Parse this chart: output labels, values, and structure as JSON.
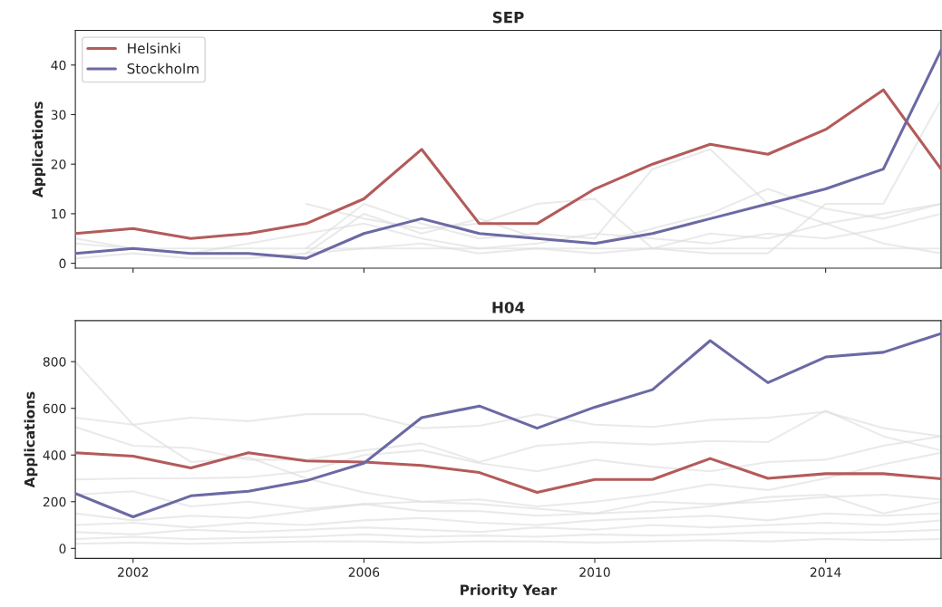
{
  "chart_data": [
    {
      "type": "line",
      "title": "SEP",
      "ylabel": "Applications",
      "x": [
        2001,
        2002,
        2003,
        2004,
        2005,
        2006,
        2007,
        2008,
        2009,
        2010,
        2011,
        2012,
        2013,
        2014,
        2015,
        2016
      ],
      "xlim": [
        2001,
        2016
      ],
      "xticks": [
        {
          "value": 2002,
          "label": null
        },
        {
          "value": 2006,
          "label": null
        },
        {
          "value": 2010,
          "label": null
        },
        {
          "value": 2014,
          "label": null
        }
      ],
      "ylim": [
        -1,
        47
      ],
      "yticks": [
        0,
        10,
        20,
        30,
        40
      ],
      "tick_labels": "y",
      "legend": "top left",
      "grid": false,
      "line_style": "solid",
      "marker": "none",
      "series": [
        {
          "color": "#dcdcdc",
          "values": [
            5,
            3,
            3,
            3,
            3,
            3,
            3,
            3,
            3,
            3,
            3,
            3,
            3,
            3,
            3,
            3
          ]
        },
        {
          "color": "#dcdcdc",
          "values": [
            null,
            null,
            null,
            null,
            12,
            9,
            7,
            8,
            12,
            13,
            3,
            2,
            2,
            12,
            12,
            33
          ]
        },
        {
          "color": "#dcdcdc",
          "values": [
            null,
            null,
            null,
            null,
            3,
            12,
            8,
            5,
            6,
            5,
            19,
            23,
            12,
            8,
            4,
            2
          ]
        },
        {
          "color": "#dcdcdc",
          "values": [
            null,
            null,
            null,
            null,
            2,
            10,
            6,
            9,
            5,
            4,
            7,
            10,
            15,
            11,
            9,
            12
          ]
        },
        {
          "color": "#dcdcdc",
          "values": [
            4,
            3,
            2,
            4,
            6,
            8,
            5,
            3,
            4,
            6,
            5,
            4,
            6,
            5,
            7,
            10
          ]
        },
        {
          "color": "#dcdcdc",
          "values": [
            1,
            2,
            1,
            1,
            2,
            3,
            4,
            2,
            3,
            2,
            3,
            6,
            5,
            8,
            10,
            12
          ]
        },
        {
          "name": "Helsinki",
          "color": "#b35b5a",
          "values": [
            6,
            7,
            5,
            6,
            8,
            13,
            23,
            8,
            8,
            15,
            20,
            24,
            22,
            27,
            35,
            19
          ]
        },
        {
          "name": "Stockholm",
          "color": "#6b69a4",
          "values": [
            2,
            3,
            2,
            2,
            1,
            6,
            9,
            6,
            5,
            4,
            6,
            9,
            12,
            15,
            19,
            43
          ]
        }
      ]
    },
    {
      "type": "line",
      "title": "H04",
      "ylabel": "Applications",
      "xlabel": "Priority Year",
      "x": [
        2001,
        2002,
        2003,
        2004,
        2005,
        2006,
        2007,
        2008,
        2009,
        2010,
        2011,
        2012,
        2013,
        2014,
        2015,
        2016
      ],
      "xlim": [
        2001,
        2016
      ],
      "xticks": [
        2002,
        2006,
        2010,
        2014
      ],
      "ylim": [
        -43,
        976
      ],
      "yticks": [
        0,
        200,
        400,
        600,
        800
      ],
      "legend": false,
      "grid": false,
      "line_style": "solid",
      "marker": "none",
      "series": [
        {
          "color": "#dcdcdc",
          "values": [
            800,
            530,
            370,
            390,
            300,
            240,
            200,
            190,
            170,
            150,
            160,
            180,
            220,
            230,
            150,
            200
          ]
        },
        {
          "color": "#dcdcdc",
          "values": [
            560,
            530,
            560,
            545,
            575,
            575,
            515,
            525,
            575,
            530,
            520,
            550,
            560,
            585,
            515,
            480
          ]
        },
        {
          "color": "#dcdcdc",
          "values": [
            520,
            440,
            430,
            380,
            380,
            420,
            450,
            370,
            440,
            455,
            445,
            460,
            455,
            590,
            480,
            420
          ]
        },
        {
          "color": "#dcdcdc",
          "values": [
            295,
            300,
            300,
            305,
            330,
            400,
            420,
            365,
            330,
            380,
            350,
            330,
            370,
            380,
            440,
            480
          ]
        },
        {
          "color": "#dcdcdc",
          "values": [
            230,
            245,
            180,
            200,
            170,
            190,
            200,
            210,
            180,
            200,
            230,
            275,
            250,
            300,
            360,
            410
          ]
        },
        {
          "color": "#dcdcdc",
          "values": [
            150,
            120,
            140,
            130,
            160,
            190,
            160,
            160,
            140,
            150,
            200,
            190,
            200,
            220,
            230,
            210
          ]
        },
        {
          "color": "#dcdcdc",
          "values": [
            100,
            110,
            90,
            110,
            100,
            120,
            130,
            110,
            100,
            120,
            130,
            140,
            120,
            150,
            140,
            150
          ]
        },
        {
          "color": "#dcdcdc",
          "values": [
            70,
            60,
            80,
            70,
            80,
            90,
            80,
            70,
            90,
            80,
            100,
            90,
            100,
            110,
            100,
            120
          ]
        },
        {
          "color": "#dcdcdc",
          "values": [
            40,
            50,
            40,
            45,
            50,
            60,
            50,
            55,
            50,
            60,
            55,
            60,
            70,
            65,
            70,
            80
          ]
        },
        {
          "color": "#dcdcdc",
          "values": [
            20,
            25,
            20,
            25,
            30,
            30,
            25,
            30,
            30,
            25,
            30,
            35,
            30,
            40,
            35,
            40
          ]
        },
        {
          "color": "#b35b5a",
          "values": [
            410,
            395,
            345,
            410,
            375,
            370,
            355,
            325,
            240,
            295,
            295,
            385,
            300,
            320,
            320,
            298
          ]
        },
        {
          "color": "#6b69a4",
          "values": [
            235,
            135,
            225,
            245,
            290,
            365,
            560,
            610,
            515,
            605,
            680,
            890,
            710,
            820,
            840,
            920
          ]
        }
      ]
    }
  ]
}
